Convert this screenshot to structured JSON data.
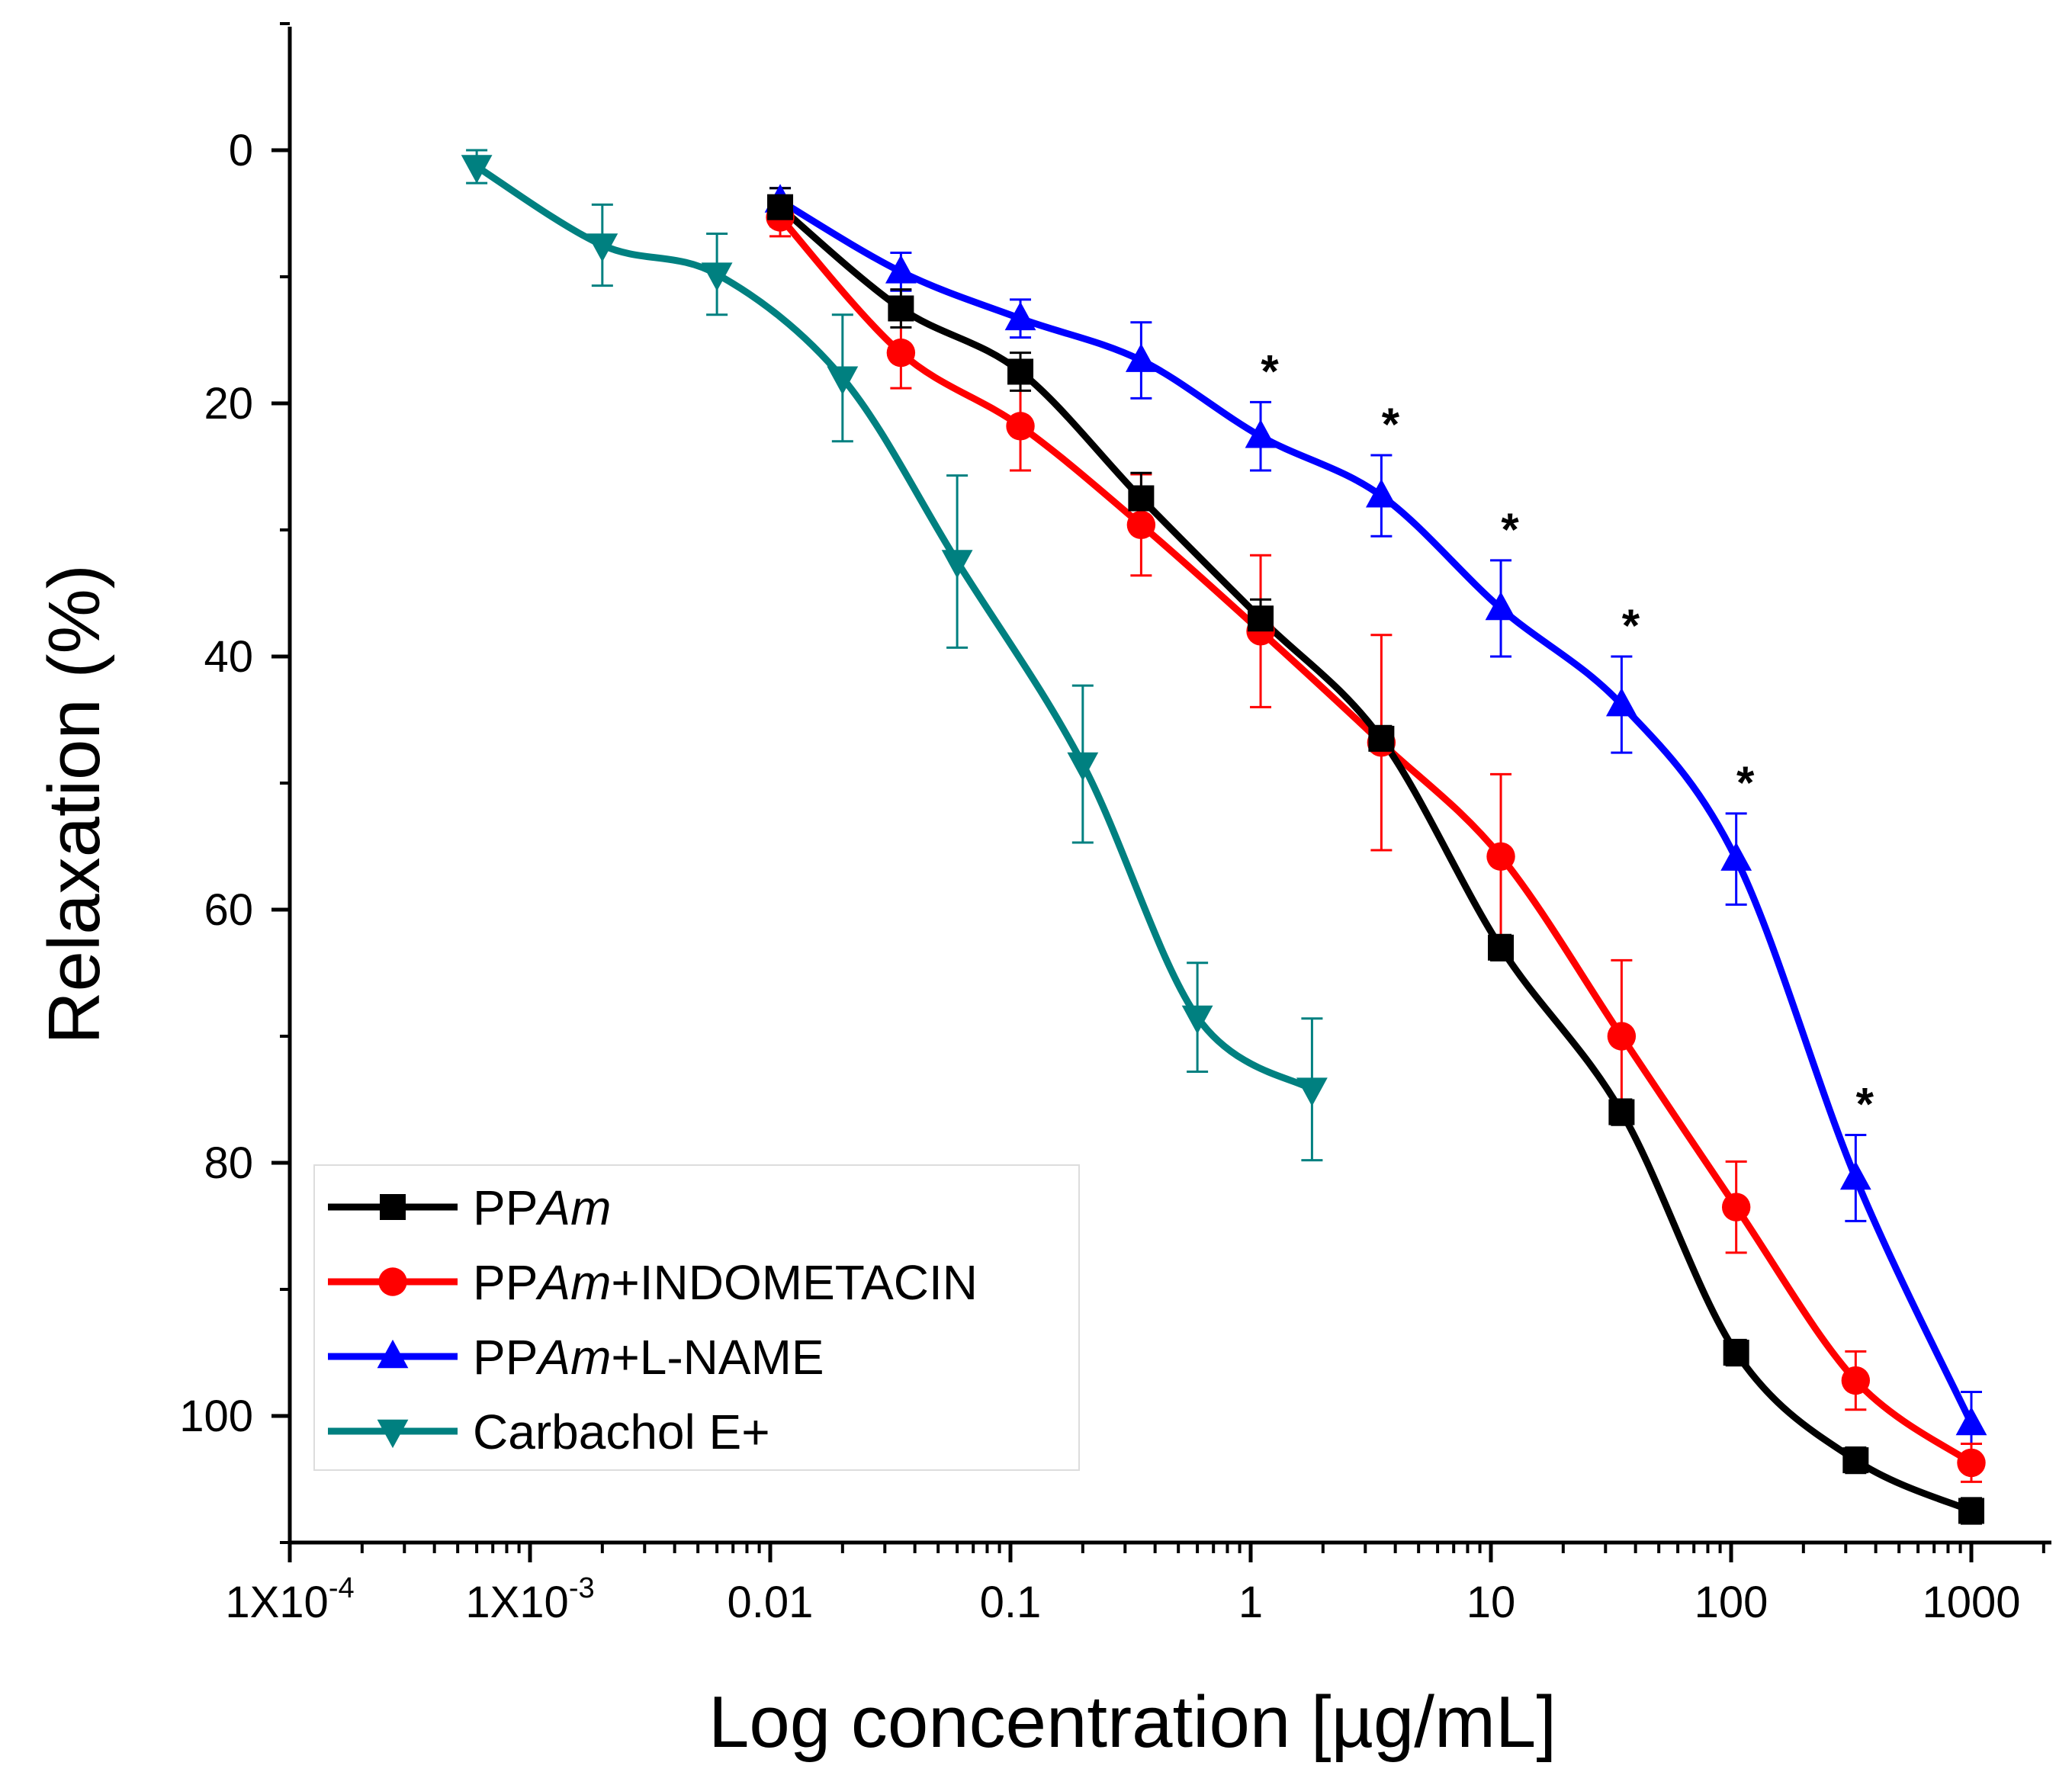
{
  "chart_data": {
    "type": "line",
    "xlabel": "Log concentration [µg/mL]",
    "ylabel": "Relaxation (%)",
    "x_scale": "log",
    "xlim": [
      0.0001,
      2000
    ],
    "ylim": [
      110,
      -10
    ],
    "y_inverted": true,
    "x_tick_labels": [
      {
        "value": 0.0001,
        "base": "1X10",
        "exp": "-4"
      },
      {
        "value": 0.001,
        "base": "1X10",
        "exp": "-3"
      },
      {
        "value": 0.01,
        "text": "0.01"
      },
      {
        "value": 0.1,
        "text": "0.1"
      },
      {
        "value": 1,
        "text": "1"
      },
      {
        "value": 10,
        "text": "10"
      },
      {
        "value": 100,
        "text": "100"
      },
      {
        "value": 1000,
        "text": "1000"
      }
    ],
    "y_ticks": [
      0,
      20,
      40,
      60,
      80,
      100
    ],
    "y_tick_labels": [
      "0",
      "20",
      "40",
      "60",
      "80",
      "100"
    ],
    "series": [
      {
        "name_parts": [
          "PP",
          "Am",
          ""
        ],
        "color": "#000000",
        "marker": "square",
        "x": [
          0.011,
          0.035,
          0.11,
          0.35,
          1.1,
          3.5,
          11,
          35,
          105,
          330,
          1000
        ],
        "y": [
          4.5,
          12.5,
          17.5,
          27.5,
          37,
          46.5,
          63,
          76,
          95,
          103.5,
          107.5
        ],
        "err": [
          1.5,
          1.5,
          1.5,
          2,
          1.5,
          1,
          1,
          1,
          1,
          1,
          1
        ]
      },
      {
        "name_parts": [
          "PP",
          "Am",
          "+INDOMETACIN"
        ],
        "color": "#ff0000",
        "marker": "circle",
        "x": [
          0.011,
          0.035,
          0.11,
          0.35,
          1.1,
          3.5,
          11,
          35,
          105,
          330,
          1000
        ],
        "y": [
          5.3,
          16,
          21.8,
          29.6,
          38,
          46.8,
          55.8,
          70,
          83.5,
          97.2,
          103.7
        ],
        "err": [
          1.5,
          2.8,
          3.5,
          4,
          6,
          8.5,
          6.5,
          6,
          3.6,
          2.3,
          1.5
        ]
      },
      {
        "name_parts": [
          "PP",
          "Am",
          "+L-NAME"
        ],
        "color": "#0000ff",
        "marker": "triangle-up",
        "x": [
          0.011,
          0.035,
          0.11,
          0.35,
          1.1,
          3.5,
          11,
          35,
          105,
          330,
          1000
        ],
        "y": [
          4,
          9.6,
          13.3,
          16.6,
          22.6,
          27.3,
          36.2,
          43.8,
          56,
          81.2,
          100.6
        ],
        "err": [
          1,
          1.5,
          1.5,
          3,
          2.7,
          3.2,
          3.8,
          3.8,
          3.6,
          3.4,
          2.5
        ]
      },
      {
        "name_parts": [
          "Carbachol E+",
          "",
          ""
        ],
        "color": "#008080",
        "marker": "triangle-down",
        "x": [
          0.0006,
          0.002,
          0.006,
          0.02,
          0.06,
          0.2,
          0.6,
          1.8
        ],
        "y": [
          1.3,
          7.5,
          9.8,
          18,
          32.5,
          48.5,
          68.5,
          74.2
        ],
        "err": [
          1.3,
          3.2,
          3.2,
          5,
          6.8,
          6.2,
          4.3,
          5.6
        ]
      }
    ],
    "annotations": {
      "text": "*",
      "at_series": 2,
      "at_indices": [
        4,
        5,
        6,
        7,
        8,
        9
      ]
    },
    "legend": "bottom-left"
  }
}
